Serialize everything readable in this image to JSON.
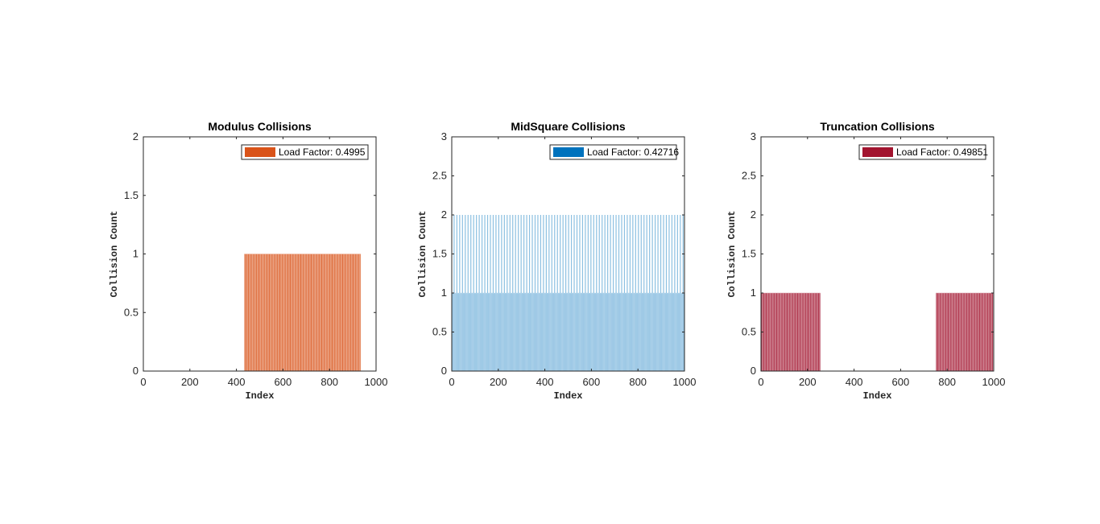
{
  "chart_data": [
    {
      "type": "bar",
      "title": "Modulus Collisions",
      "xlabel": "Index",
      "ylabel": "Collision Count",
      "xlim": [
        0,
        1000
      ],
      "ylim": [
        0,
        2
      ],
      "xticks": [
        "0",
        "200",
        "400",
        "600",
        "800",
        "1000"
      ],
      "yticks": [
        "0",
        "0.5",
        "1",
        "1.5",
        "2"
      ],
      "legend": "Load Factor: 0.4995",
      "legend_position": "top-right",
      "color": "#D95319",
      "bar_step": 5,
      "grid": false,
      "segments": [
        {
          "x_start": 434,
          "x_end": 932,
          "value": 1
        }
      ]
    },
    {
      "type": "bar",
      "title": "MidSquare Collisions",
      "xlabel": "Index",
      "ylabel": "Collision Count",
      "xlim": [
        0,
        1000
      ],
      "ylim": [
        0,
        3
      ],
      "xticks": [
        "0",
        "200",
        "400",
        "600",
        "800",
        "1000"
      ],
      "yticks": [
        "0",
        "0.5",
        "1",
        "1.5",
        "2",
        "2.5",
        "3"
      ],
      "legend": "Load Factor: 0.42716",
      "legend_position": "top-right",
      "color": "#0072BD",
      "bar_step": 4,
      "grid": false,
      "segments": [
        {
          "x_start": 0,
          "x_end": 996,
          "value": 1
        }
      ],
      "peaks": {
        "value": 2,
        "x": [
          8,
          20,
          32,
          44,
          56,
          68,
          80,
          92,
          104,
          116,
          128,
          140,
          152,
          164,
          176,
          188,
          200,
          212,
          224,
          236,
          248,
          260,
          272,
          284,
          296,
          308,
          320,
          332,
          344,
          356,
          368,
          380,
          392,
          404,
          416,
          428,
          440,
          452,
          464,
          476,
          488,
          500,
          512,
          524,
          536,
          548,
          560,
          572,
          584,
          596,
          608,
          620,
          632,
          644,
          656,
          668,
          680,
          692,
          704,
          716,
          728,
          740,
          752,
          764,
          776,
          788,
          800,
          812,
          824,
          836,
          848,
          860,
          872,
          884,
          896,
          908,
          920,
          932,
          944,
          956,
          968,
          980,
          992
        ]
      }
    },
    {
      "type": "bar",
      "title": "Truncation Collisions",
      "xlabel": "Index",
      "ylabel": "Collision Count",
      "xlim": [
        0,
        1000
      ],
      "ylim": [
        0,
        3
      ],
      "xticks": [
        "0",
        "200",
        "400",
        "600",
        "800",
        "1000"
      ],
      "yticks": [
        "0",
        "0.5",
        "1",
        "1.5",
        "2",
        "2.5",
        "3"
      ],
      "legend": "Load Factor: 0.49851",
      "legend_position": "top-right",
      "color": "#A2142F",
      "bar_step": 5,
      "grid": false,
      "segments": [
        {
          "x_start": 0,
          "x_end": 252,
          "value": 1
        },
        {
          "x_start": 752,
          "x_end": 996,
          "value": 1
        }
      ]
    }
  ]
}
